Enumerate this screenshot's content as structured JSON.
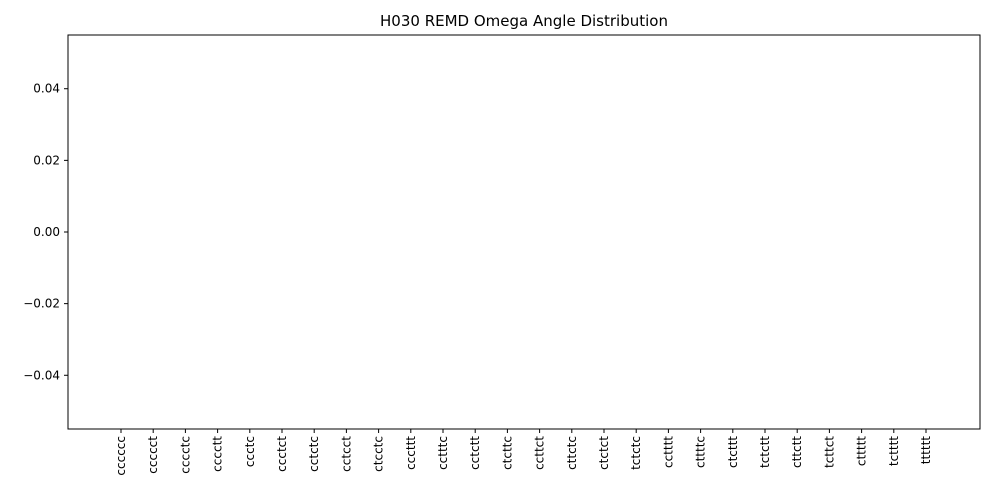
{
  "chart_data": {
    "type": "bar",
    "title": "H030 REMD Omega Angle Distribution",
    "xlabel": "",
    "ylabel": "",
    "categories": [
      "cccccc",
      "ccccct",
      "cccctc",
      "cccctt",
      "ccctc",
      "ccctct",
      "cctctc",
      "cctcct",
      "ctcctc",
      "cccttt",
      "cctttc",
      "cctctt",
      "ctcttc",
      "ccttct",
      "cttctc",
      "ctctct",
      "tctctc",
      "cctttt",
      "cttttc",
      "ctcttt",
      "tctctt",
      "cttctt",
      "tcttct",
      "cttttt",
      "tctttt",
      "tttttt"
    ],
    "values": [
      0,
      0,
      0,
      0,
      0,
      0,
      0,
      0,
      0,
      0,
      0,
      0,
      0,
      0,
      0,
      0,
      0,
      0,
      0,
      0,
      0,
      0,
      0,
      0,
      0,
      0
    ],
    "yticks": [
      -0.04,
      -0.02,
      0.0,
      0.02,
      0.04
    ],
    "ytick_labels": [
      "−0.04",
      "−0.02",
      "0.00",
      "0.02",
      "0.04"
    ],
    "ylim": [
      -0.055,
      0.055
    ],
    "grid": false,
    "legend": "none"
  }
}
